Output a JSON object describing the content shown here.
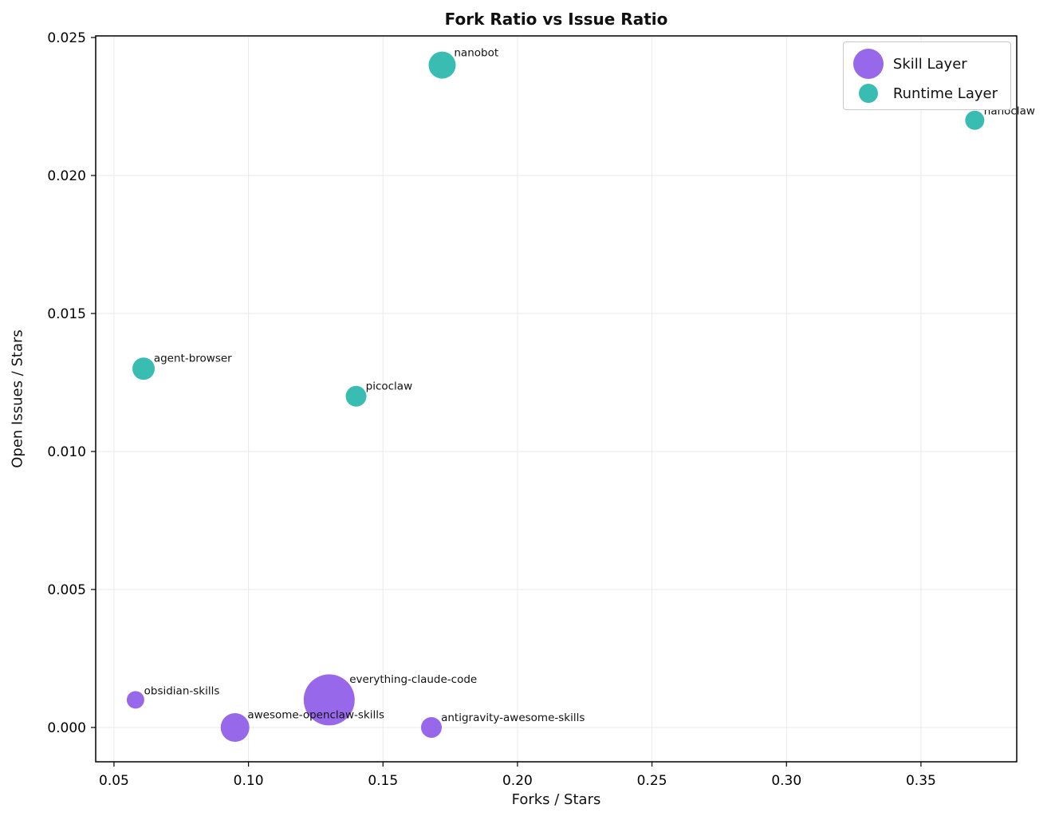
{
  "chart_data": {
    "type": "scatter",
    "title": "Fork Ratio vs Issue Ratio",
    "xlabel": "Forks / Stars",
    "ylabel": "Open Issues / Stars",
    "xlim": [
      0.0432,
      0.3856
    ],
    "ylim": [
      -0.001243,
      0.025058
    ],
    "xtick_values": [
      0.05,
      0.1,
      0.15,
      0.2,
      0.25,
      0.3,
      0.35
    ],
    "xtick_labels": [
      "0.05",
      "0.10",
      "0.15",
      "0.20",
      "0.25",
      "0.30",
      "0.35"
    ],
    "ytick_values": [
      0.0,
      0.005,
      0.01,
      0.015,
      0.02,
      0.025
    ],
    "ytick_labels": [
      "0.000",
      "0.005",
      "0.010",
      "0.015",
      "0.020",
      "0.025"
    ],
    "grid": true,
    "legend_position": "upper right",
    "series": [
      {
        "name": "Skill Layer",
        "color": "#8d58e8",
        "points": [
          {
            "label": "obsidian-skills",
            "x": 0.058,
            "y": 0.001,
            "r": 11
          },
          {
            "label": "everything-claude-code",
            "x": 0.13,
            "y": 0.001,
            "r": 32
          },
          {
            "label": "awesome-openclaw-skills",
            "x": 0.095,
            "y": 0.0,
            "r": 18
          },
          {
            "label": "antigravity-awesome-skills",
            "x": 0.168,
            "y": 0.0,
            "r": 13
          }
        ]
      },
      {
        "name": "Runtime Layer",
        "color": "#23b6aa",
        "points": [
          {
            "label": "nanobot",
            "x": 0.172,
            "y": 0.024,
            "r": 17
          },
          {
            "label": "nanoclaw",
            "x": 0.37,
            "y": 0.022,
            "r": 12
          },
          {
            "label": "agent-browser",
            "x": 0.061,
            "y": 0.013,
            "r": 14
          },
          {
            "label": "picoclaw",
            "x": 0.14,
            "y": 0.012,
            "r": 13
          }
        ]
      }
    ],
    "legend": [
      {
        "label": "Skill Layer",
        "color": "#8d58e8",
        "marker_r": 19
      },
      {
        "label": "Runtime Layer",
        "color": "#23b6aa",
        "marker_r": 12
      }
    ]
  }
}
